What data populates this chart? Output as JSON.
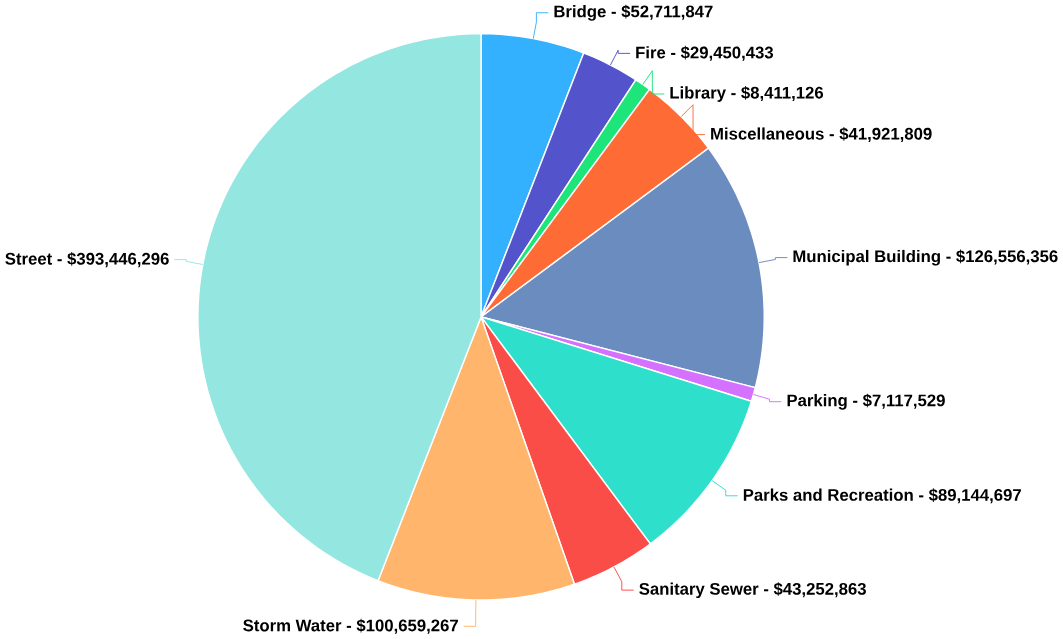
{
  "chart_data": {
    "type": "pie",
    "categories": [
      "Bridge -",
      "Fire -",
      "Library -",
      "Miscellaneous -",
      "Municipal Building -",
      "Parking -",
      "Parks and Recreation -",
      "Sanitary Sewer -",
      "Storm Water -",
      "Street -"
    ],
    "values": [
      52711847,
      29450433,
      8411126,
      41921809,
      126556356,
      7117529,
      89144697,
      43252863,
      100659267,
      393446296
    ],
    "value_labels": [
      "$52,711,847",
      "$29,450,433",
      "$8,411,126",
      "$41,921,809",
      "$126,556,356",
      "$7,117,529",
      "$89,144,697",
      "$43,252,863",
      "$100,659,267",
      "$393,446,296"
    ],
    "colors": [
      "#33b1ff",
      "#5353cc",
      "#1ee57a",
      "#ff6b35",
      "#6b8cbf",
      "#d472ff",
      "#2ee0cb",
      "#fa4d48",
      "#ffb56b",
      "#94e7e0"
    ]
  }
}
